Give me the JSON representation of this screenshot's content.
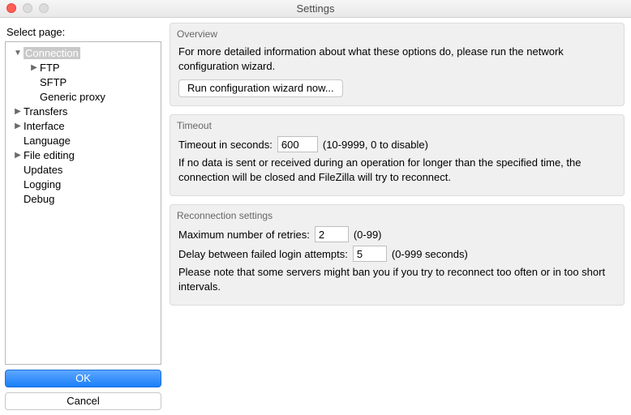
{
  "window": {
    "title": "Settings"
  },
  "sidebar": {
    "label": "Select page:",
    "items": [
      {
        "label": "Connection",
        "expanded": true,
        "selected": true,
        "depth": 0,
        "hasChildren": true
      },
      {
        "label": "FTP",
        "expanded": false,
        "selected": false,
        "depth": 1,
        "hasChildren": true
      },
      {
        "label": "SFTP",
        "expanded": false,
        "selected": false,
        "depth": 1,
        "hasChildren": false
      },
      {
        "label": "Generic proxy",
        "expanded": false,
        "selected": false,
        "depth": 1,
        "hasChildren": false
      },
      {
        "label": "Transfers",
        "expanded": false,
        "selected": false,
        "depth": 0,
        "hasChildren": true
      },
      {
        "label": "Interface",
        "expanded": false,
        "selected": false,
        "depth": 0,
        "hasChildren": true
      },
      {
        "label": "Language",
        "expanded": false,
        "selected": false,
        "depth": 0,
        "hasChildren": false
      },
      {
        "label": "File editing",
        "expanded": false,
        "selected": false,
        "depth": 0,
        "hasChildren": true
      },
      {
        "label": "Updates",
        "expanded": false,
        "selected": false,
        "depth": 0,
        "hasChildren": false
      },
      {
        "label": "Logging",
        "expanded": false,
        "selected": false,
        "depth": 0,
        "hasChildren": false
      },
      {
        "label": "Debug",
        "expanded": false,
        "selected": false,
        "depth": 0,
        "hasChildren": false
      }
    ],
    "ok_label": "OK",
    "cancel_label": "Cancel"
  },
  "overview": {
    "title": "Overview",
    "text": "For more detailed information about what these options do, please run the network configuration wizard.",
    "button": "Run configuration wizard now..."
  },
  "timeout": {
    "title": "Timeout",
    "label": "Timeout in seconds:",
    "value": "600",
    "hint": "(10-9999, 0 to disable)",
    "desc": "If no data is sent or received during an operation for longer than the specified time, the connection will be closed and FileZilla will try to reconnect."
  },
  "reconnect": {
    "title": "Reconnection settings",
    "retries_label": "Maximum number of retries:",
    "retries_value": "2",
    "retries_hint": "(0-99)",
    "delay_label": "Delay between failed login attempts:",
    "delay_value": "5",
    "delay_hint": "(0-999 seconds)",
    "note": "Please note that some servers might ban you if you try to reconnect too often or in too short intervals."
  }
}
